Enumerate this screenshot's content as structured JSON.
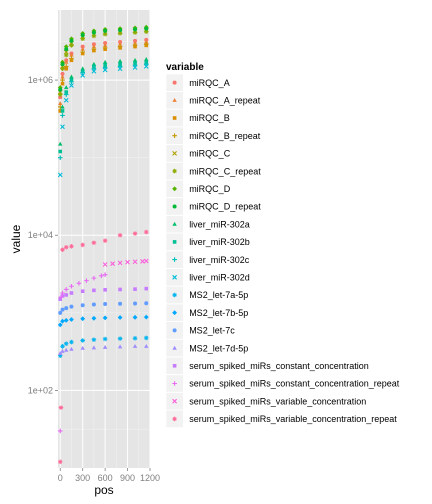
{
  "chart_data": {
    "type": "scatter",
    "xlabel": "pos",
    "ylabel": "value",
    "x_ticks": [
      0,
      300,
      600,
      900,
      1200
    ],
    "x_tick_labels": [
      "0",
      "300",
      "600",
      "900",
      "1200"
    ],
    "xlim": [
      -30,
      1200
    ],
    "y_scale": "log10",
    "ylim": [
      10,
      8000000
    ],
    "y_ticks": [
      100,
      10000,
      1000000
    ],
    "y_tick_labels": [
      "1e+02",
      "1e+04",
      "1e+06"
    ],
    "grid": true,
    "legend_position": "right",
    "legend_title": "variable",
    "series": [
      {
        "name": "miRQC_A",
        "color": "#F8766D",
        "shape": "circle",
        "x": [
          0,
          30,
          80,
          150,
          300,
          450,
          600,
          800,
          1000,
          1150
        ],
        "y": [
          600000,
          1200000,
          1800000,
          2200000,
          2700000,
          2900000,
          3000000,
          3100000,
          3200000,
          3300000
        ]
      },
      {
        "name": "miRQC_A_repeat",
        "color": "#EC823C",
        "shape": "triangle",
        "x": [
          0,
          30,
          80,
          150,
          300,
          450,
          600,
          800,
          1000,
          1150
        ],
        "y": [
          500000,
          1100000,
          1700000,
          2100000,
          2500000,
          2700000,
          2800000,
          2900000,
          3000000,
          3100000
        ]
      },
      {
        "name": "miRQC_B",
        "color": "#DC8D00",
        "shape": "square",
        "x": [
          0,
          30,
          80,
          150,
          300,
          450,
          600,
          800,
          1000,
          1150
        ],
        "y": [
          400000,
          900000,
          1400000,
          1800000,
          2200000,
          2400000,
          2500000,
          2600000,
          2700000,
          2800000
        ]
      },
      {
        "name": "miRQC_B_repeat",
        "color": "#C79800",
        "shape": "plus",
        "x": [
          0,
          30,
          80,
          150,
          300,
          450,
          600,
          800,
          1000,
          1150
        ],
        "y": [
          450000,
          1000000,
          1500000,
          1900000,
          2300000,
          2500000,
          2600000,
          2700000,
          2800000,
          2900000
        ]
      },
      {
        "name": "miRQC_C",
        "color": "#AFA100",
        "shape": "cross",
        "x": [
          0,
          30,
          80,
          150,
          300,
          450,
          600,
          800,
          1000,
          1150
        ],
        "y": [
          700000,
          1500000,
          2300000,
          3000000,
          3600000,
          3900000,
          4100000,
          4200000,
          4300000,
          4400000
        ]
      },
      {
        "name": "miRQC_C_repeat",
        "color": "#8CAB00",
        "shape": "asterisk",
        "x": [
          0,
          30,
          80,
          150,
          300,
          450,
          600,
          800,
          1000,
          1150
        ],
        "y": [
          650000,
          1400000,
          2100000,
          2800000,
          3400000,
          3700000,
          3900000,
          4000000,
          4100000,
          4200000
        ]
      },
      {
        "name": "miRQC_D",
        "color": "#53B400",
        "shape": "diamond",
        "x": [
          0,
          30,
          80,
          150,
          300,
          450,
          600,
          800,
          1000,
          1150
        ],
        "y": [
          800000,
          1700000,
          2700000,
          3400000,
          4000000,
          4300000,
          4500000,
          4600000,
          4700000,
          4800000
        ]
      },
      {
        "name": "miRQC_D_repeat",
        "color": "#00BA38",
        "shape": "circle",
        "x": [
          0,
          30,
          80,
          150,
          300,
          450,
          600,
          800,
          1000,
          1150
        ],
        "y": [
          750000,
          1600000,
          2500000,
          3200000,
          3800000,
          4100000,
          4300000,
          4400000,
          4500000,
          4600000
        ]
      },
      {
        "name": "liver_miR-302a",
        "color": "#00BD6B",
        "shape": "triangle",
        "x": [
          0,
          30,
          80,
          150,
          300,
          450,
          600,
          800,
          1000,
          1150
        ],
        "y": [
          150000,
          450000,
          800000,
          1100000,
          1400000,
          1600000,
          1700000,
          1750000,
          1800000,
          1850000
        ]
      },
      {
        "name": "liver_miR-302b",
        "color": "#00C094",
        "shape": "square",
        "x": [
          0,
          30,
          80,
          150,
          300,
          450,
          600,
          800,
          1000,
          1150
        ],
        "y": [
          120000,
          400000,
          700000,
          1000000,
          1300000,
          1500000,
          1550000,
          1600000,
          1650000,
          1700000
        ]
      },
      {
        "name": "liver_miR-302c",
        "color": "#00C0B8",
        "shape": "plus",
        "x": [
          0,
          30,
          80,
          150,
          300,
          450,
          600,
          800,
          1000,
          1150
        ],
        "y": [
          100000,
          350000,
          650000,
          950000,
          1250000,
          1400000,
          1450000,
          1500000,
          1550000,
          1600000
        ]
      },
      {
        "name": "liver_miR-302d",
        "color": "#00BCD8",
        "shape": "cross",
        "x": [
          0,
          30,
          80,
          150,
          300,
          450,
          600,
          800,
          1000,
          1150
        ],
        "y": [
          60000,
          250000,
          550000,
          850000,
          1150000,
          1300000,
          1350000,
          1400000,
          1450000,
          1500000
        ]
      },
      {
        "name": "MS2_let-7a-5p",
        "color": "#00B4F0",
        "shape": "asterisk",
        "x": [
          0,
          30,
          80,
          150,
          300,
          450,
          600,
          800,
          1000,
          1150
        ],
        "y": [
          280,
          370,
          400,
          420,
          440,
          450,
          460,
          465,
          470,
          475
        ]
      },
      {
        "name": "MS2_let-7b-5p",
        "color": "#00A8FF",
        "shape": "diamond",
        "x": [
          0,
          30,
          80,
          150,
          300,
          450,
          600,
          800,
          1000,
          1150
        ],
        "y": [
          700,
          780,
          800,
          820,
          840,
          850,
          860,
          870,
          875,
          880
        ]
      },
      {
        "name": "MS2_let-7c",
        "color": "#619CFF",
        "shape": "circle",
        "x": [
          0,
          30,
          80,
          150,
          300,
          450,
          600,
          800,
          1000,
          1150
        ],
        "y": [
          1000,
          1100,
          1150,
          1200,
          1250,
          1280,
          1300,
          1310,
          1320,
          1330
        ]
      },
      {
        "name": "MS2_let-7d-5p",
        "color": "#9F8CFF",
        "shape": "triangle",
        "x": [
          0,
          30,
          80,
          150,
          300,
          450,
          600,
          800,
          1000,
          1150
        ],
        "y": [
          300,
          320,
          330,
          340,
          350,
          355,
          360,
          365,
          370,
          370
        ]
      },
      {
        "name": "serum_spiked_miRs_constant_concentration",
        "color": "#C77CFF",
        "shape": "square",
        "x": [
          0,
          30,
          80,
          150,
          300,
          450,
          600,
          800,
          1000,
          1150
        ],
        "y": [
          1500,
          1650,
          1700,
          1800,
          1900,
          1950,
          1980,
          2000,
          2020,
          2050
        ]
      },
      {
        "name": "serum_spiked_miRs_constant_concentration_repeat",
        "color": "#E76BF3",
        "shape": "plus",
        "x": [
          0,
          10,
          30,
          80,
          150,
          250,
          350,
          450,
          550,
          600
        ],
        "y": [
          30,
          1600,
          1800,
          2000,
          2200,
          2400,
          2600,
          2800,
          3000,
          3100
        ]
      },
      {
        "name": "serum_spiked_miRs_variable_concentration",
        "color": "#FA62DB",
        "shape": "cross",
        "x": [
          600,
          700,
          800,
          900,
          1000,
          1100,
          1150
        ],
        "y": [
          4200,
          4300,
          4400,
          4500,
          4550,
          4600,
          4650
        ]
      },
      {
        "name": "serum_spiked_miRs_variable_concentration_repeat",
        "color": "#FF6A98",
        "shape": "asterisk",
        "x": [
          0,
          10,
          30,
          80,
          150,
          300,
          450,
          600,
          800,
          1000,
          1150
        ],
        "y": [
          12,
          60,
          6500,
          7000,
          7200,
          7500,
          8000,
          8500,
          10000,
          10500,
          11000
        ]
      }
    ]
  }
}
